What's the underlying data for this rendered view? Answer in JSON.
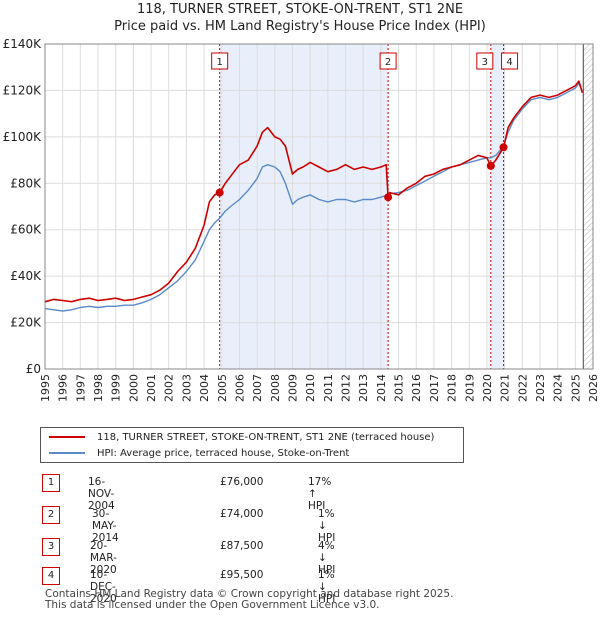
{
  "header": {
    "title_line1": "118, TURNER STREET, STOKE-ON-TRENT, ST1 2NE",
    "title_line2": "Price paid vs. HM Land Registry's House Price Index (HPI)"
  },
  "chart_data": {
    "type": "line",
    "title": "118, TURNER STREET, STOKE-ON-TRENT, ST1 2NE — Price paid vs. HM Land Registry's House Price Index (HPI)",
    "xlim": [
      1995,
      2026
    ],
    "ylim": [
      0,
      140000
    ],
    "y_ticks": [
      0,
      20000,
      40000,
      60000,
      80000,
      100000,
      120000,
      140000
    ],
    "y_tick_labels": [
      "£0",
      "£20K",
      "£40K",
      "£60K",
      "£80K",
      "£100K",
      "£120K",
      "£140K"
    ],
    "x_ticks": [
      1995,
      1996,
      1997,
      1998,
      1999,
      2000,
      2001,
      2002,
      2003,
      2004,
      2005,
      2006,
      2007,
      2008,
      2009,
      2010,
      2011,
      2012,
      2013,
      2014,
      2015,
      2016,
      2017,
      2018,
      2019,
      2020,
      2021,
      2022,
      2023,
      2024,
      2025,
      2026
    ],
    "x_tick_labels": [
      "1995",
      "1996",
      "1997",
      "1998",
      "1999",
      "2000",
      "2001",
      "2002",
      "2003",
      "2004",
      "2005",
      "2006",
      "2007",
      "2008",
      "2009",
      "2010",
      "2011",
      "2012",
      "2013",
      "2014",
      "2015",
      "2016",
      "2017",
      "2018",
      "2019",
      "2020",
      "2021",
      "2022",
      "2023",
      "2024",
      "2025",
      "2026"
    ],
    "grid": true,
    "shaded_ranges": [
      [
        2004.88,
        2014.41
      ],
      [
        2020.22,
        2020.94
      ]
    ],
    "future_from": 2025.45,
    "series": [
      {
        "name": "118, TURNER STREET, STOKE-ON-TRENT, ST1 2NE (terraced house)",
        "color": "#cc0000",
        "x": [
          1995.0,
          1995.5,
          1996.0,
          1996.5,
          1997.0,
          1997.5,
          1998.0,
          1998.5,
          1999.0,
          1999.5,
          2000.0,
          2000.5,
          2001.0,
          2001.5,
          2002.0,
          2002.5,
          2003.0,
          2003.5,
          2004.0,
          2004.3,
          2004.6,
          2004.88,
          2005.2,
          2005.5,
          2006.0,
          2006.5,
          2007.0,
          2007.3,
          2007.6,
          2008.0,
          2008.3,
          2008.6,
          2009.0,
          2009.3,
          2009.6,
          2010.0,
          2010.5,
          2011.0,
          2011.5,
          2012.0,
          2012.5,
          2013.0,
          2013.5,
          2014.0,
          2014.3,
          2014.41,
          2014.5,
          2015.0,
          2015.5,
          2016.0,
          2016.5,
          2017.0,
          2017.5,
          2018.0,
          2018.5,
          2019.0,
          2019.5,
          2020.0,
          2020.22,
          2020.5,
          2020.94,
          2021.2,
          2021.5,
          2022.0,
          2022.5,
          2023.0,
          2023.5,
          2024.0,
          2024.5,
          2025.0,
          2025.2,
          2025.4
        ],
        "y": [
          29000,
          30000,
          29500,
          29000,
          30000,
          30500,
          29500,
          30000,
          30500,
          29500,
          30000,
          31000,
          32000,
          34000,
          37000,
          42000,
          46000,
          52000,
          62000,
          72000,
          75000,
          76000,
          80000,
          83000,
          88000,
          90000,
          96000,
          102000,
          104000,
          100000,
          99000,
          96000,
          84000,
          86000,
          87000,
          89000,
          87000,
          85000,
          86000,
          88000,
          86000,
          87000,
          86000,
          87000,
          88000,
          74000,
          76000,
          75000,
          78000,
          80000,
          83000,
          84000,
          86000,
          87000,
          88000,
          90000,
          92000,
          91000,
          87500,
          90000,
          95500,
          104000,
          108000,
          113000,
          117000,
          118000,
          117000,
          118000,
          120000,
          122000,
          124000,
          119000
        ]
      },
      {
        "name": "HPI: Average price, terraced house, Stoke-on-Trent",
        "color": "#5b8ac8",
        "x": [
          1995.0,
          1995.5,
          1996.0,
          1996.5,
          1997.0,
          1997.5,
          1998.0,
          1998.5,
          1999.0,
          1999.5,
          2000.0,
          2000.5,
          2001.0,
          2001.5,
          2002.0,
          2002.5,
          2003.0,
          2003.5,
          2004.0,
          2004.3,
          2004.6,
          2004.88,
          2005.2,
          2005.5,
          2006.0,
          2006.5,
          2007.0,
          2007.3,
          2007.6,
          2008.0,
          2008.3,
          2008.6,
          2009.0,
          2009.3,
          2009.6,
          2010.0,
          2010.5,
          2011.0,
          2011.5,
          2012.0,
          2012.5,
          2013.0,
          2013.5,
          2014.0,
          2014.41,
          2014.5,
          2015.0,
          2015.5,
          2016.0,
          2016.5,
          2017.0,
          2017.5,
          2018.0,
          2018.5,
          2019.0,
          2019.5,
          2020.0,
          2020.22,
          2020.5,
          2020.94,
          2021.2,
          2021.5,
          2022.0,
          2022.5,
          2023.0,
          2023.5,
          2024.0,
          2024.5,
          2025.0,
          2025.2,
          2025.4
        ],
        "y": [
          26000,
          25500,
          25000,
          25500,
          26500,
          27000,
          26500,
          27000,
          27000,
          27500,
          27500,
          28500,
          30000,
          32000,
          35000,
          38000,
          42000,
          47000,
          55000,
          60000,
          63000,
          65000,
          68000,
          70000,
          73000,
          77000,
          82000,
          87000,
          88000,
          87000,
          85000,
          80000,
          71000,
          73000,
          74000,
          75000,
          73000,
          72000,
          73000,
          73000,
          72000,
          73000,
          73000,
          74000,
          75000,
          75500,
          76000,
          77000,
          79000,
          81000,
          83000,
          85000,
          87000,
          88000,
          89000,
          90000,
          91000,
          91000,
          92000,
          96000,
          102000,
          107000,
          112000,
          116000,
          117000,
          116000,
          117000,
          119000,
          121000,
          123000,
          119500
        ]
      }
    ],
    "sales": [
      {
        "marker": "1",
        "x": 2004.88,
        "y": 76000
      },
      {
        "marker": "2",
        "x": 2014.41,
        "y": 74000
      },
      {
        "marker": "3",
        "x": 2020.22,
        "y": 87500
      },
      {
        "marker": "4",
        "x": 2020.94,
        "y": 95500
      }
    ]
  },
  "legend": {
    "property_label": "118, TURNER STREET, STOKE-ON-TRENT, ST1 2NE (terraced house)",
    "hpi_label": "HPI: Average price, terraced house, Stoke-on-Trent"
  },
  "transactions": [
    {
      "marker": "1",
      "date": "16-NOV-2004",
      "price": "£76,000",
      "hpi": "17% ↑ HPI"
    },
    {
      "marker": "2",
      "date": "30-MAY-2014",
      "price": "£74,000",
      "hpi": "1% ↓ HPI"
    },
    {
      "marker": "3",
      "date": "20-MAR-2020",
      "price": "£87,500",
      "hpi": "4% ↓ HPI"
    },
    {
      "marker": "4",
      "date": "10-DEC-2020",
      "price": "£95,500",
      "hpi": "1% ↓ HPI"
    }
  ],
  "footer": {
    "line1": "Contains HM Land Registry data © Crown copyright and database right 2025.",
    "line2": "This data is licensed under the Open Government Licence v3.0."
  },
  "colors": {
    "property": "#cc0000",
    "hpi": "#5b8ac8",
    "shade": "#e8eefa",
    "grid": "#dddddd"
  }
}
